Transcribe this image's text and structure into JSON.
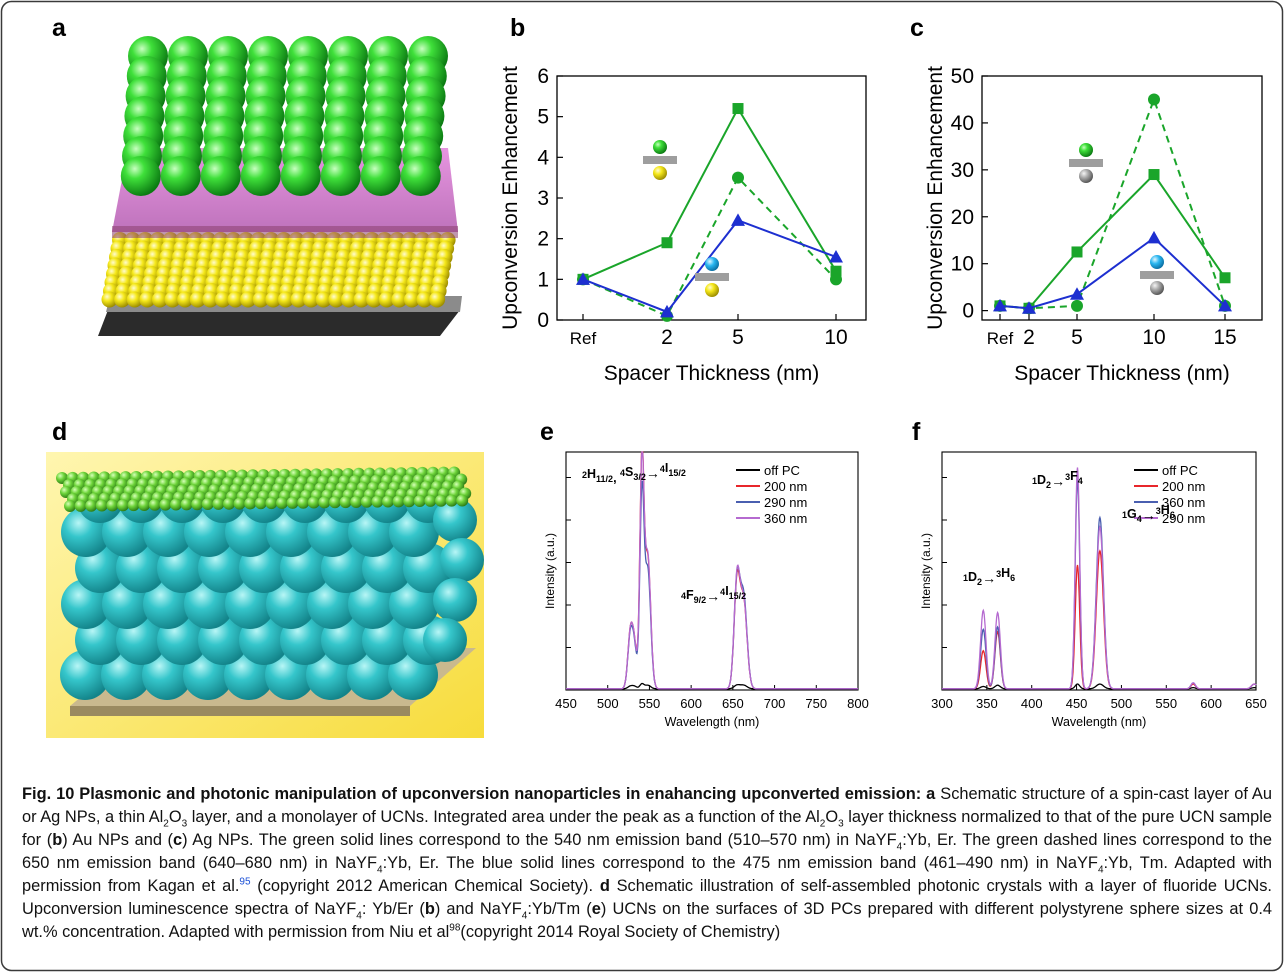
{
  "panels": {
    "a": {
      "letter": "a"
    },
    "b": {
      "letter": "b"
    },
    "c": {
      "letter": "c"
    },
    "d": {
      "letter": "d"
    },
    "e": {
      "letter": "e"
    },
    "f": {
      "letter": "f"
    }
  },
  "colors": {
    "green": "#1aa52a",
    "blue": "#1d2fd0",
    "au": "#f2e614",
    "ag": "#a8a8a8",
    "ucn_green": "#2ed12e",
    "pc_cyan": "#2ec3c8",
    "alumina_pink": "#d97fd2",
    "black": "#000000",
    "red": "#e8262b",
    "slate": "#4a5fb0",
    "violet": "#b56ad0"
  },
  "chart_data": [
    {
      "panel": "b",
      "type": "line",
      "xlabel": "Spacer Thickness (nm)",
      "ylabel": "Upconversion Enhancement",
      "x_ticks": [
        "Ref",
        "2",
        "5",
        "10"
      ],
      "ylim": [
        0,
        6
      ],
      "y_ticks": [
        "0",
        "1",
        "2",
        "3",
        "4",
        "5",
        "6"
      ],
      "series": [
        {
          "style": "green-solid-square",
          "values": [
            1.0,
            1.9,
            5.2,
            1.2
          ]
        },
        {
          "style": "green-dashed-circle",
          "values": [
            1.0,
            0.1,
            3.5,
            1.0
          ]
        },
        {
          "style": "blue-solid-triangle",
          "values": [
            1.0,
            0.2,
            2.45,
            1.55
          ]
        }
      ]
    },
    {
      "panel": "c",
      "type": "line",
      "xlabel": "Spacer Thickness (nm)",
      "ylabel": "Upconversion Enhancement",
      "x_ticks": [
        "Ref",
        "2",
        "5",
        "10",
        "15"
      ],
      "ylim": [
        -2,
        50
      ],
      "y_ticks": [
        "0",
        "10",
        "20",
        "30",
        "40",
        "50"
      ],
      "series": [
        {
          "style": "green-solid-square",
          "values": [
            1.0,
            0.5,
            12.5,
            29,
            7
          ]
        },
        {
          "style": "green-dashed-circle",
          "values": [
            1.0,
            0.5,
            1.0,
            45,
            1.0
          ]
        },
        {
          "style": "blue-solid-triangle",
          "values": [
            1.0,
            0.5,
            3.5,
            15.5,
            1.0
          ]
        }
      ]
    },
    {
      "panel": "e",
      "type": "line",
      "xlabel": "Wavelength (nm)",
      "ylabel": "Intensity (a.u.)",
      "xlim": [
        450,
        800
      ],
      "x_ticks": [
        "450",
        "500",
        "550",
        "600",
        "650",
        "700",
        "750",
        "800"
      ],
      "legend": [
        "off PC",
        "200 nm",
        "290 nm",
        "360 nm"
      ],
      "annotations": {
        "band1": {
          "a": "2",
          "b": "H",
          "c": "11/2",
          "sep": ", ",
          "d": "4",
          "e": "S",
          "f": "3/2",
          "g": "4",
          "h": "I",
          "i": "15/2"
        },
        "band2": {
          "a": "4",
          "b": "F",
          "c": "9/2",
          "g": "4",
          "h": "I",
          "i": "15/2"
        }
      },
      "peaks": [
        {
          "center": 527,
          "width": 3,
          "amp": [
            0.01,
            0.22,
            0.21,
            0.22
          ]
        },
        {
          "center": 532,
          "width": 3,
          "amp": [
            0.01,
            0.17,
            0.16,
            0.17
          ]
        },
        {
          "center": 541,
          "width": 2.5,
          "amp": [
            0.02,
            0.95,
            0.8,
            0.93
          ]
        },
        {
          "center": 548,
          "width": 3.5,
          "amp": [
            0.015,
            0.55,
            0.5,
            0.56
          ]
        },
        {
          "center": 655,
          "width": 3.5,
          "amp": [
            0.015,
            0.44,
            0.45,
            0.46
          ]
        },
        {
          "center": 663,
          "width": 4,
          "amp": [
            0.015,
            0.36,
            0.38,
            0.36
          ]
        }
      ]
    },
    {
      "panel": "f",
      "type": "line",
      "xlabel": "Wavelength (nm)",
      "ylabel": "Intensity (a.u.)",
      "xlim": [
        300,
        650
      ],
      "x_ticks": [
        "300",
        "350",
        "400",
        "450",
        "500",
        "550",
        "600",
        "650"
      ],
      "legend": [
        "off PC",
        "200 nm",
        "360 nm",
        "290 nm"
      ],
      "annotations": {
        "band1": {
          "a": "1",
          "b": "D",
          "c": "2",
          "g": "3",
          "h": "F",
          "i": "4"
        },
        "band2": {
          "a": "1",
          "b": "G",
          "c": "4",
          "g": "3",
          "h": "H",
          "i": "6"
        },
        "band3": {
          "a": "1",
          "b": "D",
          "c": "2",
          "g": "3",
          "h": "H",
          "i": "6"
        }
      },
      "peaks": [
        {
          "center": 346,
          "width": 3,
          "amp": [
            0.01,
            0.16,
            0.25,
            0.33
          ]
        },
        {
          "center": 362,
          "width": 3,
          "amp": [
            0.015,
            0.24,
            0.26,
            0.32
          ]
        },
        {
          "center": 451,
          "width": 2.5,
          "amp": [
            0.02,
            0.52,
            0.88,
            0.93
          ]
        },
        {
          "center": 476,
          "width": 4,
          "amp": [
            0.02,
            0.58,
            0.72,
            0.68
          ]
        },
        {
          "center": 580,
          "width": 2.5,
          "amp": [
            0.005,
            0.02,
            0.025,
            0.025
          ]
        },
        {
          "center": 648,
          "width": 3,
          "amp": [
            0.005,
            0.02,
            0.02,
            0.02
          ]
        }
      ]
    }
  ],
  "caption": {
    "title": "Fig. 10 Plasmonic and photonic manipulation of upconversion nanoparticles in enahancing upconverted emission:",
    "p01": " a",
    "p02": " Schematic structure of a spin-cast layer of Au or Ag NPs, a thin Al",
    "p03": "2",
    "p04": "O",
    "p05": "3",
    "p06": " layer, and a monolayer of UCNs. Integrated area under the peak as a function of the Al",
    "p07": "2",
    "p08": "O",
    "p09": "3",
    "p10": " layer thickness normalized to that of the pure UCN sample for (",
    "p11": "b",
    "p12": ") Au NPs and (",
    "p13": "c",
    "p14": ") Ag NPs. The green solid lines correspond to the 540 nm emission band (510–570 nm) in NaYF",
    "p15": "4",
    "p16": ":Yb, Er. The green dashed lines correspond to the 650 nm emission band (640–680 nm) in NaYF",
    "p17": "4",
    "p18": ":Yb, Er. The blue solid lines correspond to the 475 nm emission band (461–490 nm) in NaYF",
    "p19": "4",
    "p20": ":Yb, Tm. Adapted with permission from Kagan et al.",
    "p21": "95",
    "p22": " (copyright 2012 American Chemical Society).",
    "p23": " d",
    "p24": " Schematic illustration of self-assembled photonic crystals with a layer of fluoride UCNs. Upconversion luminescence spectra of NaYF",
    "p25": "4",
    "p26": ": Yb/Er (",
    "p27": "b",
    "p28": ") and NaYF",
    "p29": "4",
    "p30": ":Yb/Tm (",
    "p31": "e",
    "p32": ") UCNs on the surfaces of 3D PCs prepared with different polystyrene sphere sizes at 0.4 wt.% concentration. Adapted with permission from Niu et al",
    "p33": "98",
    "p34": "(copyright 2014 Royal Society of Chemistry)"
  }
}
